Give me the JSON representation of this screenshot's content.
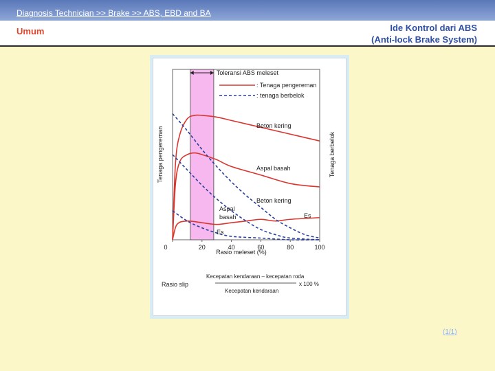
{
  "header": {
    "breadcrumb": "Diagnosis Technician >> Brake  >> ABS, EBD and BA",
    "section": "Umum",
    "title_line1": "Ide Kontrol dari ABS",
    "title_line2": "(Anti-lock Brake System)"
  },
  "page_counter": "(1/1)",
  "colors": {
    "braking": "#d9362f",
    "cornering": "#2c3f9a",
    "tolerance_band": "#f6b8ee"
  },
  "chart_data": {
    "type": "line",
    "xlabel": "Rasio meleset (%)",
    "ylabel_left": "Tenaga pengereman",
    "ylabel_right": "Tenaga berbelok",
    "xlim": [
      0,
      100
    ],
    "ylim": [
      0,
      1
    ],
    "x_ticks": [
      "0",
      "20",
      "40",
      "60",
      "80",
      "100"
    ],
    "tolerance_range": [
      12,
      28
    ],
    "tolerance_label": "Toleransi ABS meleset",
    "legend": [
      {
        "label": ": Tenaga pengereman",
        "style": "solid",
        "color": "#d9362f"
      },
      {
        "label": ": tenaga berbelok",
        "style": "dashed",
        "color": "#2c3f9a"
      }
    ],
    "series": [
      {
        "name": "Beton kering",
        "kind": "braking",
        "x": [
          0,
          2,
          5,
          10,
          15,
          20,
          30,
          40,
          60,
          80,
          100
        ],
        "y": [
          0,
          0.45,
          0.62,
          0.71,
          0.73,
          0.73,
          0.72,
          0.7,
          0.66,
          0.62,
          0.58
        ]
      },
      {
        "name": "Aspal basah",
        "kind": "braking",
        "x": [
          0,
          2,
          5,
          10,
          15,
          20,
          30,
          40,
          60,
          80,
          100
        ],
        "y": [
          0,
          0.33,
          0.46,
          0.5,
          0.51,
          0.5,
          0.47,
          0.43,
          0.38,
          0.33,
          0.31
        ]
      },
      {
        "name": "Es",
        "kind": "braking",
        "x": [
          0,
          3,
          10,
          20,
          30,
          40,
          50,
          60,
          70,
          80,
          100
        ],
        "y": [
          0,
          0.09,
          0.11,
          0.1,
          0.09,
          0.1,
          0.11,
          0.12,
          0.11,
          0.12,
          0.13
        ]
      },
      {
        "name": "Beton kering",
        "kind": "cornering",
        "x": [
          0,
          10,
          20,
          30,
          40,
          50,
          60,
          70,
          80,
          90,
          100
        ],
        "y": [
          0.74,
          0.64,
          0.53,
          0.43,
          0.34,
          0.26,
          0.19,
          0.12,
          0.07,
          0.03,
          0.01
        ]
      },
      {
        "name": "Aspal basah",
        "kind": "cornering",
        "x": [
          0,
          10,
          20,
          30,
          40,
          50,
          60,
          70,
          80,
          100
        ],
        "y": [
          0.5,
          0.41,
          0.32,
          0.24,
          0.17,
          0.11,
          0.06,
          0.03,
          0.01,
          0
        ]
      },
      {
        "name": "Es",
        "kind": "cornering",
        "x": [
          0,
          10,
          20,
          30,
          40,
          60,
          80,
          100
        ],
        "y": [
          0.17,
          0.11,
          0.07,
          0.04,
          0.02,
          0.01,
          0,
          0
        ]
      }
    ],
    "curve_labels": {
      "beton_kering_braking": "Beton kering",
      "aspal_basah_braking": "Aspal basah",
      "beton_kering_cornering": "Beton kering",
      "aspal_basah_cornering_line1": "Aspal",
      "aspal_basah_cornering_line2": "basah",
      "es_braking": "Es",
      "es_cornering": "Es"
    },
    "formula": {
      "label": "Rasio slip",
      "numerator": "Kecepatan kendaraan – kecepatan roda",
      "denominator": "Kecepatan kendaraan",
      "multiplier": "x 100 %"
    }
  }
}
